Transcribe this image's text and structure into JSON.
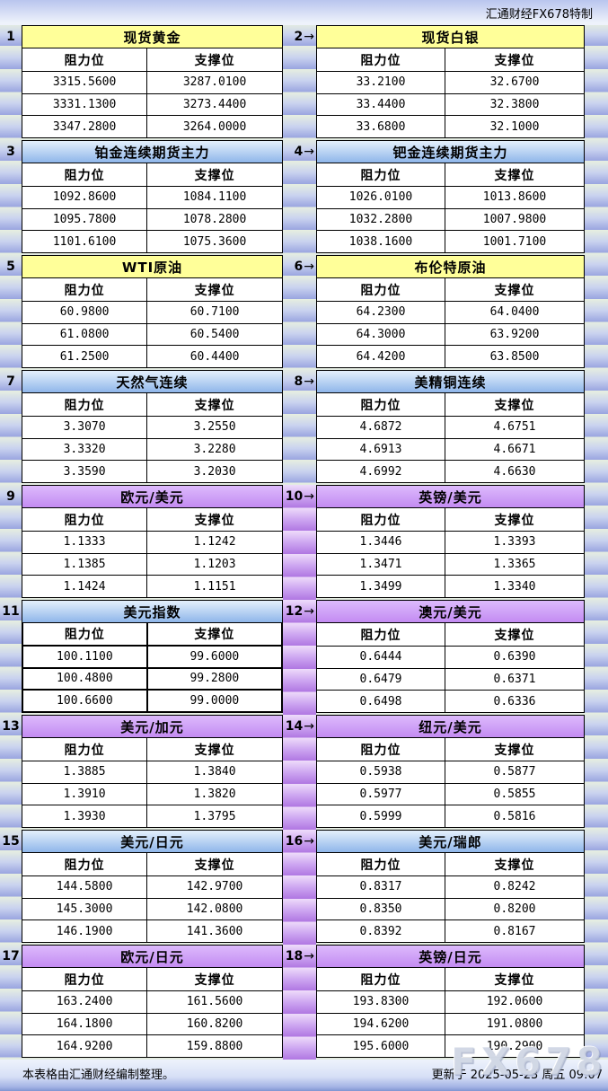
{
  "header": {
    "brand": "汇通财经FX678特制"
  },
  "labels": {
    "resistance": "阻力位",
    "support": "支撑位",
    "arrow": "→"
  },
  "watermark": "FX678",
  "footer": {
    "left": "本表格由汇通财经编制整理。",
    "right": "更新于 2025-05-23 周五 09:07"
  },
  "colors": {
    "yellow": "#ffff99",
    "blue": "#a9c9ee",
    "purple": "#cc99fa",
    "gap_purple": "#b077e2"
  },
  "tables": [
    {
      "num": "1",
      "title": "现货黄金",
      "color": "yellow",
      "rows": [
        [
          "3315.5600",
          "3287.0100"
        ],
        [
          "3331.1300",
          "3273.4400"
        ],
        [
          "3347.2800",
          "3264.0000"
        ]
      ]
    },
    {
      "num": "2",
      "title": "现货白银",
      "color": "yellow",
      "rows": [
        [
          "33.2100",
          "32.6700"
        ],
        [
          "33.4400",
          "32.3800"
        ],
        [
          "33.6800",
          "32.1000"
        ]
      ]
    },
    {
      "num": "3",
      "title": "铂金连续期货主力",
      "color": "blue",
      "rows": [
        [
          "1092.8600",
          "1084.1100"
        ],
        [
          "1095.7800",
          "1078.2800"
        ],
        [
          "1101.6100",
          "1075.3600"
        ]
      ]
    },
    {
      "num": "4",
      "title": "钯金连续期货主力",
      "color": "blue",
      "rows": [
        [
          "1026.0100",
          "1013.8600"
        ],
        [
          "1032.2800",
          "1007.9800"
        ],
        [
          "1038.1600",
          "1001.7100"
        ]
      ]
    },
    {
      "num": "5",
      "title": "WTI原油",
      "color": "yellow",
      "rows": [
        [
          "60.9800",
          "60.7100"
        ],
        [
          "61.0800",
          "60.5400"
        ],
        [
          "61.2500",
          "60.4400"
        ]
      ]
    },
    {
      "num": "6",
      "title": "布伦特原油",
      "color": "yellow",
      "rows": [
        [
          "64.2300",
          "64.0400"
        ],
        [
          "64.3000",
          "63.9200"
        ],
        [
          "64.4200",
          "63.8500"
        ]
      ]
    },
    {
      "num": "7",
      "title": "天然气连续",
      "color": "blue",
      "rows": [
        [
          "3.3070",
          "3.2550"
        ],
        [
          "3.3320",
          "3.2280"
        ],
        [
          "3.3590",
          "3.2030"
        ]
      ]
    },
    {
      "num": "8",
      "title": "美精铜连续",
      "color": "blue",
      "rows": [
        [
          "4.6872",
          "4.6751"
        ],
        [
          "4.6913",
          "4.6671"
        ],
        [
          "4.6992",
          "4.6630"
        ]
      ]
    },
    {
      "num": "9",
      "title": "欧元/美元",
      "color": "purple",
      "rows": [
        [
          "1.1333",
          "1.1242"
        ],
        [
          "1.1385",
          "1.1203"
        ],
        [
          "1.1424",
          "1.1151"
        ]
      ]
    },
    {
      "num": "10",
      "title": "英镑/美元",
      "color": "purple",
      "rows": [
        [
          "1.3446",
          "1.3393"
        ],
        [
          "1.3471",
          "1.3365"
        ],
        [
          "1.3499",
          "1.3340"
        ]
      ]
    },
    {
      "num": "11",
      "title": "美元指数",
      "color": "blue",
      "thick_border": true,
      "rows": [
        [
          "100.1100",
          "99.6000"
        ],
        [
          "100.4800",
          "99.2800"
        ],
        [
          "100.6600",
          "99.0000"
        ]
      ]
    },
    {
      "num": "12",
      "title": "澳元/美元",
      "color": "purple",
      "rows": [
        [
          "0.6444",
          "0.6390"
        ],
        [
          "0.6479",
          "0.6371"
        ],
        [
          "0.6498",
          "0.6336"
        ]
      ]
    },
    {
      "num": "13",
      "title": "美元/加元",
      "color": "purple",
      "rows": [
        [
          "1.3885",
          "1.3840"
        ],
        [
          "1.3910",
          "1.3820"
        ],
        [
          "1.3930",
          "1.3795"
        ]
      ]
    },
    {
      "num": "14",
      "title": "纽元/美元",
      "color": "purple",
      "rows": [
        [
          "0.5938",
          "0.5877"
        ],
        [
          "0.5977",
          "0.5855"
        ],
        [
          "0.5999",
          "0.5816"
        ]
      ]
    },
    {
      "num": "15",
      "title": "美元/日元",
      "color": "blue",
      "rows": [
        [
          "144.5800",
          "142.9700"
        ],
        [
          "145.3000",
          "142.0800"
        ],
        [
          "146.1900",
          "141.3600"
        ]
      ]
    },
    {
      "num": "16",
      "title": "美元/瑞郎",
      "color": "blue",
      "rows": [
        [
          "0.8317",
          "0.8242"
        ],
        [
          "0.8350",
          "0.8200"
        ],
        [
          "0.8392",
          "0.8167"
        ]
      ]
    },
    {
      "num": "17",
      "title": "欧元/日元",
      "color": "purple",
      "rows": [
        [
          "163.2400",
          "161.5600"
        ],
        [
          "164.1800",
          "160.8200"
        ],
        [
          "164.9200",
          "159.8800"
        ]
      ]
    },
    {
      "num": "18",
      "title": "英镑/日元",
      "color": "purple",
      "rows": [
        [
          "193.8300",
          "192.0600"
        ],
        [
          "194.6200",
          "191.0800"
        ],
        [
          "195.6000",
          "190.2900"
        ]
      ]
    }
  ]
}
